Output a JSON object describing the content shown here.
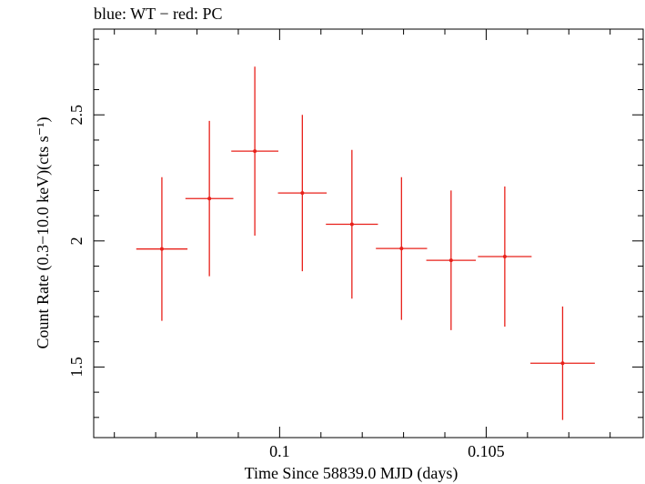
{
  "chart_data": {
    "type": "scatter",
    "title": "blue: WT − red: PC",
    "xlabel": "Time Since 58839.0 MJD (days)",
    "ylabel": "Count Rate (0.3−10.0 keV)(cts s⁻¹)",
    "xlim": [
      0.0955,
      0.1088
    ],
    "ylim": [
      1.22,
      2.84
    ],
    "x_ticks": [
      0.1,
      0.105
    ],
    "x_tick_labels": [
      "0.1",
      "0.105"
    ],
    "y_ticks": [
      1.5,
      2,
      2.5
    ],
    "y_tick_labels": [
      "1.5",
      "2",
      "2.5"
    ],
    "grid": false,
    "series": [
      {
        "name": "PC",
        "color": "#e8201a",
        "points": [
          {
            "x": 0.09715,
            "xerr": 0.00062,
            "y": 1.968,
            "yerr": 0.285
          },
          {
            "x": 0.0983,
            "xerr": 0.00058,
            "y": 2.168,
            "yerr": 0.308
          },
          {
            "x": 0.0994,
            "xerr": 0.00057,
            "y": 2.356,
            "yerr": 0.335
          },
          {
            "x": 0.10055,
            "xerr": 0.00059,
            "y": 2.19,
            "yerr": 0.31
          },
          {
            "x": 0.10175,
            "xerr": 0.00063,
            "y": 2.066,
            "yerr": 0.295
          },
          {
            "x": 0.10295,
            "xerr": 0.00062,
            "y": 1.97,
            "yerr": 0.283
          },
          {
            "x": 0.10415,
            "xerr": 0.0006,
            "y": 1.923,
            "yerr": 0.277
          },
          {
            "x": 0.10545,
            "xerr": 0.00065,
            "y": 1.938,
            "yerr": 0.278
          },
          {
            "x": 0.10685,
            "xerr": 0.00078,
            "y": 1.515,
            "yerr": 0.225
          }
        ]
      }
    ]
  }
}
